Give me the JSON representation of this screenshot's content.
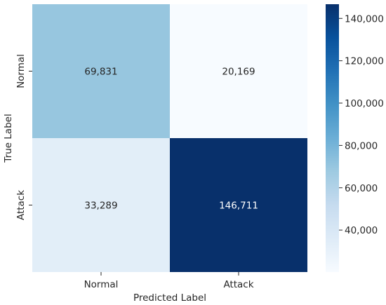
{
  "chart_data": {
    "type": "heatmap",
    "xlabel": "Predicted Label",
    "ylabel": "True Label",
    "x_categories": [
      "Normal",
      "Attack"
    ],
    "y_categories": [
      "Normal",
      "Attack"
    ],
    "values": [
      [
        69831,
        20169
      ],
      [
        33289,
        146711
      ]
    ],
    "value_labels": [
      [
        "69,831",
        "20,169"
      ],
      [
        "33,289",
        "146,711"
      ]
    ],
    "colorbar": {
      "colormap": "Blues",
      "vmin": 20169,
      "vmax": 146711,
      "ticks": [
        40000,
        60000,
        80000,
        100000,
        120000,
        140000
      ],
      "tick_labels": [
        "40,000",
        "60,000",
        "80,000",
        "100,000",
        "120,000",
        "140,000"
      ]
    },
    "grid": false
  }
}
